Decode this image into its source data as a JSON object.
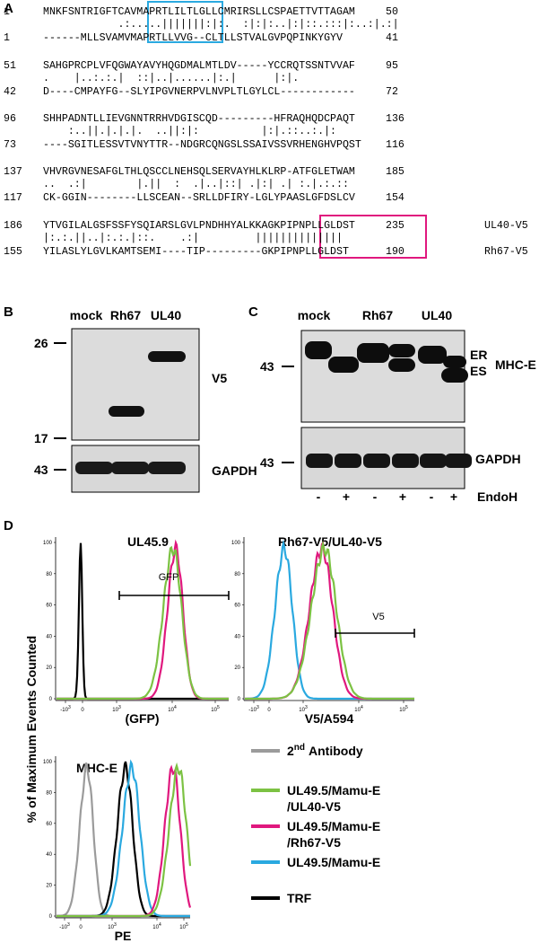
{
  "panel_labels": [
    "A",
    "B",
    "C",
    "D"
  ],
  "alignment": {
    "blocks": [
      {
        "top": {
          "start": "1",
          "seq": "MNKFSNTRIGFTCAVMAPRTLILTLGLLCMRIRSLLCSPAETTVTTAGAM",
          "end": "50"
        },
        "match": "            .:.....|||||||:|:.  :|:|:..|:|::.:::|:..:|.:|",
        "bottom": {
          "start": "1",
          "seq": "------MLLSVAMVMAPRTLLVVG--CLTLLSTVALGVPQPINKYGYV",
          "end": "41"
        }
      },
      {
        "top": {
          "start": "51",
          "seq": "SAHGPRCPLVFQGWAYAVYHQGDMALMTLDV-----YCCRQTSSNTVVAF",
          "end": "95"
        },
        "match": ".    |..:.:.|  ::|..|......|:.|      |:|.",
        "bottom": {
          "start": "42",
          "seq": "D----CMPAYFG--SLYIPGVNERPVLNVPLTLGYLCL------------",
          "end": "72"
        }
      },
      {
        "top": {
          "start": "96",
          "seq": "SHHPADNTLLIEVGNNTRRHVDGISCQD---------HFRAQHQDCPAQT",
          "end": "136"
        },
        "match": "    :..||.|.|.|.  ..||:|:          |:|.::..:.|:",
        "bottom": {
          "start": "73",
          "seq": "----SGITLESSVTVNYTTR--NDGRCQNGSLSSAIVSSVRHENGHVPQST",
          "end": "116"
        }
      },
      {
        "top": {
          "start": "137",
          "seq": "VHVRGVNESAFGLTHLQSCCLNEHSQLSERVAYHLKLRP-ATFGLETWAM",
          "end": "185"
        },
        "match": "..  .:|        |.||  :  .|..|::| .|:| .| :.|.:.::",
        "bottom": {
          "start": "117",
          "seq": "CK-GGIN--------LLSCEAN--SRLLDFIRY-LGLYPAASLGFDSLCV",
          "end": "154"
        }
      },
      {
        "top": {
          "start": "186",
          "seq": "YTVGILALGSFSSFYSQIARSLGVLPNDHHYALKKAGKPIPNPLLGLDST",
          "end": "235"
        },
        "match": "|:.:.||..|:.:.|::.    .:|         ||||||||||||||",
        "bottom": {
          "start": "155",
          "seq": "YILASLYLGVLKAMTSEMI----TIP---------GKPIPNPLLGLDST",
          "end": "190"
        }
      }
    ],
    "tags": [
      "UL40-V5",
      "Rh67-V5"
    ]
  },
  "blot_b": {
    "lanes": [
      "mock",
      "Rh67",
      "UL40"
    ],
    "markers": [
      "26",
      "17",
      "43"
    ],
    "labels": [
      "V5",
      "GAPDH"
    ]
  },
  "blot_c": {
    "lanes": [
      "mock",
      "Rh67",
      "UL40"
    ],
    "markers": [
      "43",
      "43"
    ],
    "band_labels": [
      "ER",
      "ES"
    ],
    "labels": [
      "MHC-E",
      "GAPDH"
    ],
    "treatment": [
      "-",
      "+",
      "-",
      "+",
      "-",
      "+"
    ],
    "treatment_label": "EndoH"
  },
  "flow": {
    "y_label": "% of Maximum Events Counted",
    "plots": [
      {
        "title": "UL45.9",
        "x_label": "(GFP)",
        "gate_label": "GFP"
      },
      {
        "title": "Rh67-V5/UL40-V5",
        "x_label": "V5/A594",
        "gate_label": "V5"
      },
      {
        "title": "MHC-E",
        "x_label": "PE"
      }
    ],
    "y_ticks": [
      "100",
      "80",
      "60",
      "40",
      "20",
      "0"
    ],
    "x_ticks": [
      {
        "base": "-10",
        "exp": "3"
      },
      {
        "base": "0"
      },
      {
        "base": "10",
        "exp": "3"
      },
      {
        "base": "10",
        "exp": "4"
      },
      {
        "base": "10",
        "exp": "5"
      }
    ],
    "legend": [
      {
        "prefix": "2",
        "sup": "nd",
        "lines": [
          "Antibody"
        ],
        "color": "#9b9b9b"
      },
      {
        "lines": [
          "UL49.5/Mamu-E",
          "/UL40-V5"
        ],
        "color": "#7cc243"
      },
      {
        "lines": [
          "UL49.5/Mamu-E",
          "/Rh67-V5"
        ],
        "color": "#e0187e"
      },
      {
        "lines": [
          "UL49.5/Mamu-E"
        ],
        "color": "#2aa9e0"
      },
      {
        "lines": [
          "TRF"
        ],
        "color": "#000000"
      }
    ]
  }
}
